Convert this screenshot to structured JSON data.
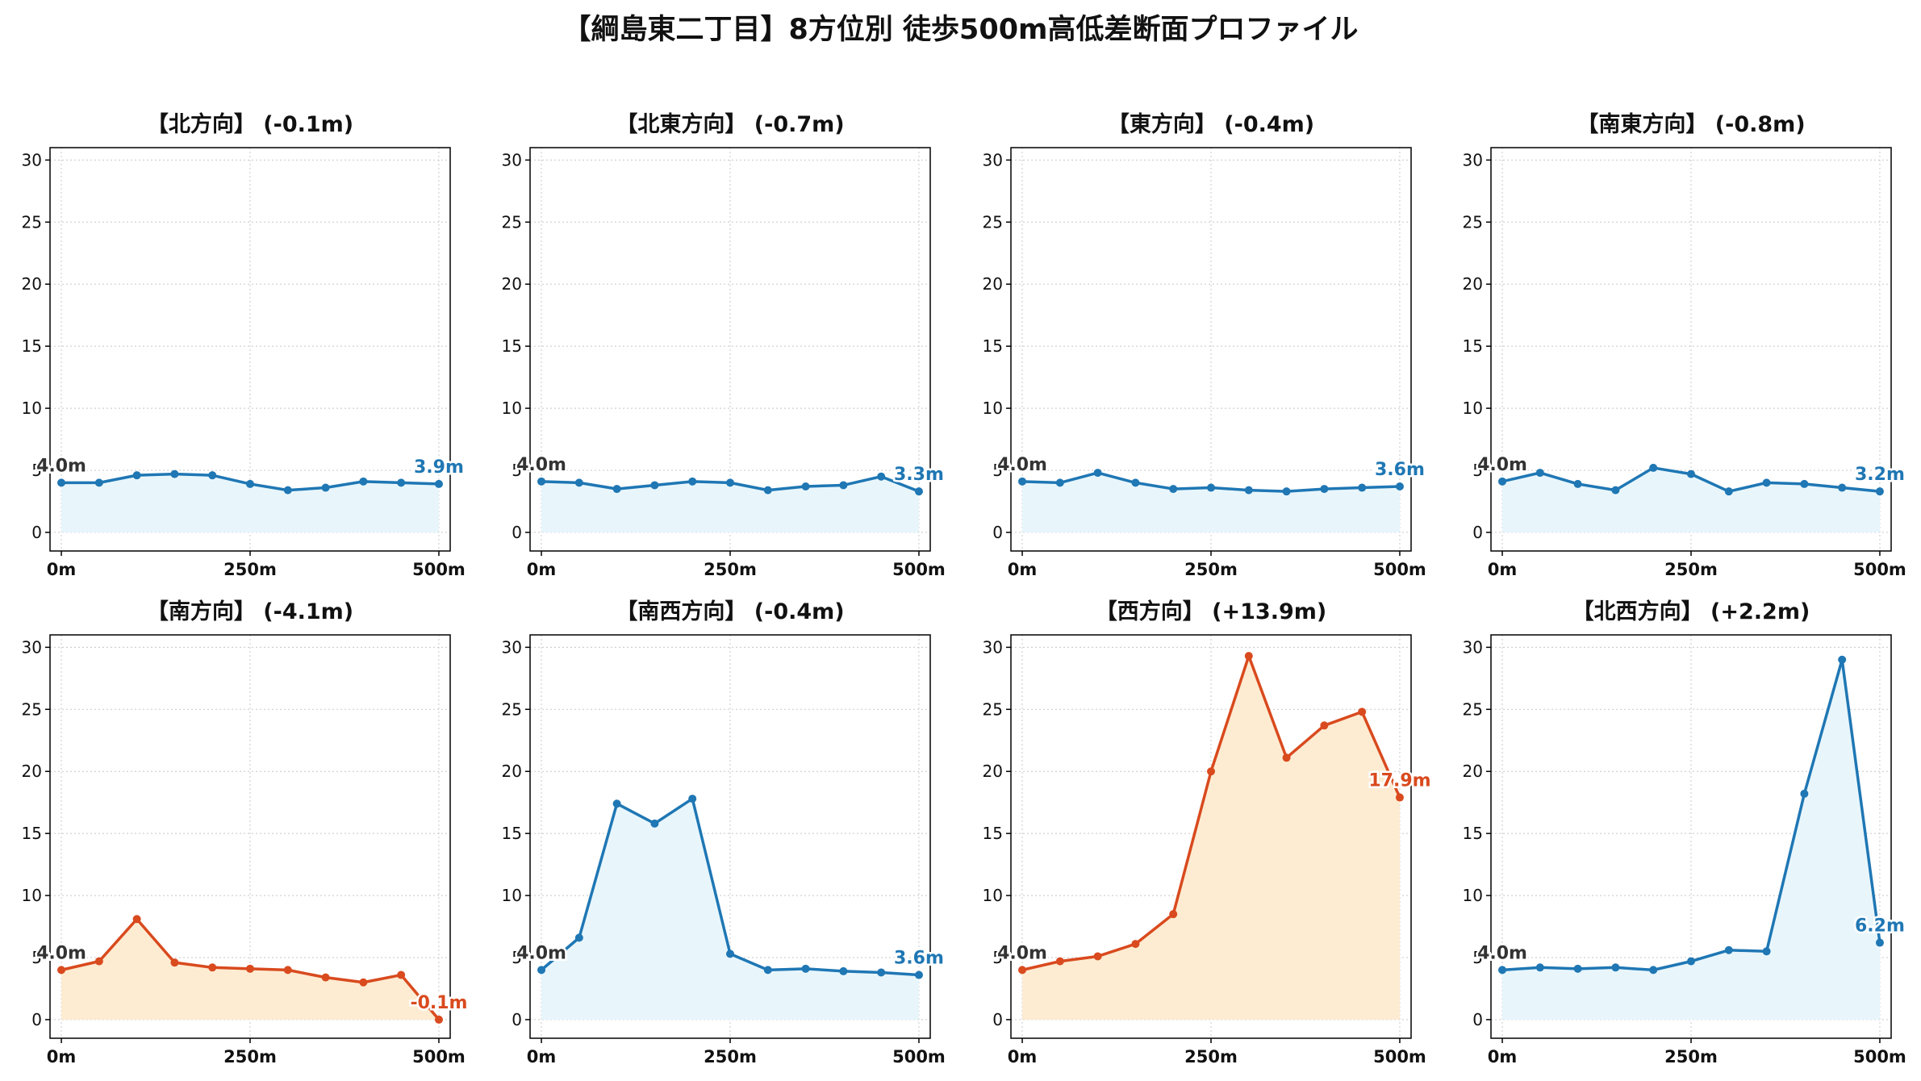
{
  "figure": {
    "title": "【綱島東二丁目】8方位別 徒歩500m高低差断面プロファイル"
  },
  "colors": {
    "blue_line": "#1f77b4",
    "blue_fill": "#e8f6fc",
    "orange_line": "#d94a1e",
    "orange_fill": "#fdecd2",
    "start_label": "#333333",
    "grid": "#c8c8c8"
  },
  "chart_data": [
    {
      "type": "area",
      "title": "【北方向】 (-0.1m)",
      "x": [
        0,
        50,
        100,
        150,
        200,
        250,
        300,
        350,
        400,
        450,
        500
      ],
      "values": [
        4.0,
        4.0,
        4.6,
        4.7,
        4.6,
        3.9,
        3.4,
        3.6,
        4.1,
        4.0,
        3.9
      ],
      "color": "blue",
      "start_label": "4.0m",
      "end_label": "3.9m",
      "xticks": [
        "0m",
        "250m",
        "500m"
      ],
      "yticks": [
        0,
        5,
        10,
        15,
        20,
        25,
        30
      ],
      "ylim": [
        -1.5,
        31
      ],
      "xlim": [
        -15,
        515
      ],
      "grid": true
    },
    {
      "type": "area",
      "title": "【北東方向】 (-0.7m)",
      "x": [
        0,
        50,
        100,
        150,
        200,
        250,
        300,
        350,
        400,
        450,
        500
      ],
      "values": [
        4.1,
        4.0,
        3.5,
        3.8,
        4.1,
        4.0,
        3.4,
        3.7,
        3.8,
        4.5,
        3.3
      ],
      "color": "blue",
      "start_label": "4.0m",
      "end_label": "3.3m",
      "xticks": [
        "0m",
        "250m",
        "500m"
      ],
      "yticks": [
        0,
        5,
        10,
        15,
        20,
        25,
        30
      ],
      "ylim": [
        -1.5,
        31
      ],
      "xlim": [
        -15,
        515
      ],
      "grid": true
    },
    {
      "type": "area",
      "title": "【東方向】 (-0.4m)",
      "x": [
        0,
        50,
        100,
        150,
        200,
        250,
        300,
        350,
        400,
        450,
        500
      ],
      "values": [
        4.1,
        4.0,
        4.8,
        4.0,
        3.5,
        3.6,
        3.4,
        3.3,
        3.5,
        3.6,
        3.7
      ],
      "color": "blue",
      "start_label": "4.0m",
      "end_label": "3.6m",
      "xticks": [
        "0m",
        "250m",
        "500m"
      ],
      "yticks": [
        0,
        5,
        10,
        15,
        20,
        25,
        30
      ],
      "ylim": [
        -1.5,
        31
      ],
      "xlim": [
        -15,
        515
      ],
      "grid": true
    },
    {
      "type": "area",
      "title": "【南東方向】 (-0.8m)",
      "x": [
        0,
        50,
        100,
        150,
        200,
        250,
        300,
        350,
        400,
        450,
        500
      ],
      "values": [
        4.1,
        4.8,
        3.9,
        3.4,
        5.2,
        4.7,
        3.3,
        4.0,
        3.9,
        3.6,
        3.3
      ],
      "color": "blue",
      "start_label": "4.0m",
      "end_label": "3.2m",
      "xticks": [
        "0m",
        "250m",
        "500m"
      ],
      "yticks": [
        0,
        5,
        10,
        15,
        20,
        25,
        30
      ],
      "ylim": [
        -1.5,
        31
      ],
      "xlim": [
        -15,
        515
      ],
      "grid": true
    },
    {
      "type": "area",
      "title": "【南方向】 (-4.1m)",
      "x": [
        0,
        50,
        100,
        150,
        200,
        250,
        300,
        350,
        400,
        450,
        500
      ],
      "values": [
        4.0,
        4.7,
        8.1,
        4.6,
        4.2,
        4.1,
        4.0,
        3.4,
        3.0,
        3.6,
        0.0
      ],
      "color": "orange",
      "start_label": "4.0m",
      "end_label": "-0.1m",
      "xticks": [
        "0m",
        "250m",
        "500m"
      ],
      "yticks": [
        0,
        5,
        10,
        15,
        20,
        25,
        30
      ],
      "ylim": [
        -1.5,
        31
      ],
      "xlim": [
        -15,
        515
      ],
      "grid": true
    },
    {
      "type": "area",
      "title": "【南西方向】 (-0.4m)",
      "x": [
        0,
        50,
        100,
        150,
        200,
        250,
        300,
        350,
        400,
        450,
        500
      ],
      "values": [
        4.0,
        6.6,
        17.4,
        15.8,
        17.8,
        5.3,
        4.0,
        4.1,
        3.9,
        3.8,
        3.6
      ],
      "color": "blue",
      "start_label": "4.0m",
      "end_label": "3.6m",
      "xticks": [
        "0m",
        "250m",
        "500m"
      ],
      "yticks": [
        0,
        5,
        10,
        15,
        20,
        25,
        30
      ],
      "ylim": [
        -1.5,
        31
      ],
      "xlim": [
        -15,
        515
      ],
      "grid": true
    },
    {
      "type": "area",
      "title": "【西方向】 (+13.9m)",
      "x": [
        0,
        50,
        100,
        150,
        200,
        250,
        300,
        350,
        400,
        450,
        500
      ],
      "values": [
        4.0,
        4.7,
        5.1,
        6.1,
        8.5,
        20.0,
        29.3,
        21.1,
        23.7,
        24.8,
        17.9
      ],
      "color": "orange",
      "start_label": "4.0m",
      "end_label": "17.9m",
      "xticks": [
        "0m",
        "250m",
        "500m"
      ],
      "yticks": [
        0,
        5,
        10,
        15,
        20,
        25,
        30
      ],
      "ylim": [
        -1.5,
        31
      ],
      "xlim": [
        -15,
        515
      ],
      "grid": true
    },
    {
      "type": "area",
      "title": "【北西方向】 (+2.2m)",
      "x": [
        0,
        50,
        100,
        150,
        200,
        250,
        300,
        350,
        400,
        450,
        500
      ],
      "values": [
        4.0,
        4.2,
        4.1,
        4.2,
        4.0,
        4.7,
        5.6,
        5.5,
        18.2,
        29.0,
        6.2
      ],
      "color": "blue",
      "start_label": "4.0m",
      "end_label": "6.2m",
      "xticks": [
        "0m",
        "250m",
        "500m"
      ],
      "yticks": [
        0,
        5,
        10,
        15,
        20,
        25,
        30
      ],
      "ylim": [
        -1.5,
        31
      ],
      "xlim": [
        -15,
        515
      ],
      "grid": true
    }
  ]
}
